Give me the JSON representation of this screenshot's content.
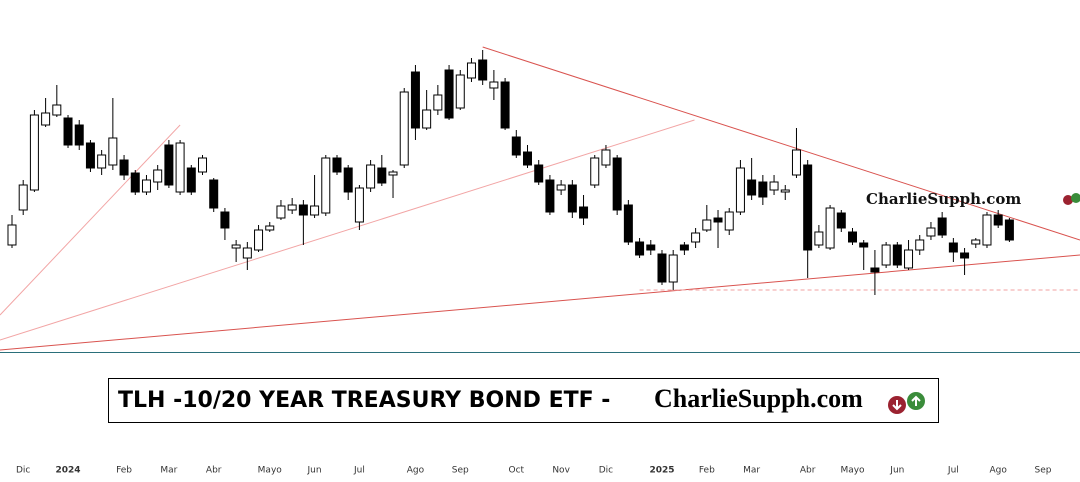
{
  "chart_data": {
    "type": "candlestick",
    "watermark": "CharlieSupph.com",
    "title": "TLH -10/20 YEAR TREASURY BOND ETF - ",
    "title_brand": "CharlieSupph.com",
    "xlim": [
      -1.07,
      95.3
    ],
    "ylim": [
      0,
      352
    ],
    "up_color": "#ffffff",
    "down_color": "#000000",
    "xticks": [
      {
        "value": 1,
        "label": "Dic"
      },
      {
        "value": 5,
        "label": "2024",
        "bold": true
      },
      {
        "value": 10,
        "label": "Feb"
      },
      {
        "value": 14,
        "label": "Mar"
      },
      {
        "value": 18,
        "label": "Abr"
      },
      {
        "value": 23,
        "label": "Mayo"
      },
      {
        "value": 27,
        "label": "Jun"
      },
      {
        "value": 31,
        "label": "Jul"
      },
      {
        "value": 36,
        "label": "Ago"
      },
      {
        "value": 40,
        "label": "Sep"
      },
      {
        "value": 45,
        "label": "Oct"
      },
      {
        "value": 49,
        "label": "Nov"
      },
      {
        "value": 53,
        "label": "Dic"
      },
      {
        "value": 58,
        "label": "2025",
        "bold": true
      },
      {
        "value": 62,
        "label": "Feb"
      },
      {
        "value": 66,
        "label": "Mar"
      },
      {
        "value": 71,
        "label": "Abr"
      },
      {
        "value": 75,
        "label": "Mayo"
      },
      {
        "value": 79,
        "label": "Jun"
      },
      {
        "value": 84,
        "label": "Jul"
      },
      {
        "value": 88,
        "label": "Ago"
      },
      {
        "value": 92,
        "label": "Sep"
      }
    ],
    "open": [
      107,
      142,
      162,
      227,
      237,
      234,
      227,
      209,
      184,
      187,
      192,
      179,
      160,
      170,
      207,
      160,
      184,
      180,
      172,
      140,
      104,
      94,
      102,
      122,
      134,
      142,
      147,
      137,
      139,
      194,
      184,
      130,
      164,
      184,
      177,
      187,
      280,
      224,
      242,
      282,
      244,
      274,
      292,
      264,
      270,
      215,
      200,
      187,
      172,
      162,
      167,
      145,
      167,
      187,
      194,
      147,
      110,
      107,
      98,
      70,
      107,
      110,
      122,
      134,
      122,
      140,
      172,
      170,
      162,
      160,
      177,
      187,
      107,
      104,
      139,
      120,
      109,
      84,
      87,
      107,
      84,
      102,
      116,
      134,
      109,
      99,
      108,
      107,
      137,
      132
    ],
    "high": [
      137,
      172,
      242,
      254,
      267,
      237,
      232,
      212,
      202,
      254,
      197,
      182,
      177,
      187,
      212,
      212,
      187,
      197,
      174,
      144,
      112,
      110,
      127,
      130,
      152,
      154,
      152,
      177,
      197,
      197,
      187,
      167,
      192,
      197,
      182,
      264,
      287,
      262,
      267,
      287,
      282,
      294,
      302,
      282,
      274,
      222,
      207,
      192,
      177,
      172,
      172,
      157,
      197,
      207,
      197,
      152,
      114,
      112,
      102,
      102,
      110,
      124,
      147,
      142,
      144,
      192,
      194,
      177,
      177,
      167,
      224,
      192,
      127,
      147,
      142,
      124,
      112,
      102,
      110,
      110,
      112,
      117,
      130,
      140,
      114,
      104,
      114,
      140,
      142,
      134
    ],
    "low": [
      104,
      137,
      160,
      225,
      235,
      204,
      202,
      180,
      177,
      182,
      172,
      157,
      157,
      162,
      164,
      157,
      157,
      177,
      140,
      112,
      90,
      82,
      100,
      120,
      132,
      138,
      107,
      134,
      136,
      177,
      152,
      122,
      160,
      166,
      154,
      184,
      212,
      222,
      237,
      232,
      242,
      270,
      267,
      252,
      222,
      194,
      184,
      167,
      137,
      157,
      134,
      127,
      164,
      184,
      137,
      107,
      94,
      97,
      67,
      62,
      97,
      104,
      120,
      104,
      117,
      137,
      152,
      147,
      157,
      152,
      174,
      74,
      104,
      102,
      120,
      107,
      82,
      57,
      84,
      84,
      82,
      97,
      112,
      114,
      90,
      77,
      104,
      104,
      124,
      110
    ],
    "close": [
      127,
      167,
      237,
      239,
      247,
      207,
      207,
      184,
      197,
      214,
      177,
      160,
      172,
      182,
      167,
      209,
      160,
      194,
      144,
      124,
      107,
      104,
      122,
      126,
      146,
      147,
      137,
      146,
      194,
      180,
      160,
      164,
      187,
      169,
      180,
      260,
      224,
      242,
      257,
      234,
      277,
      289,
      272,
      270,
      224,
      197,
      187,
      170,
      140,
      167,
      140,
      134,
      194,
      202,
      142,
      110,
      97,
      102,
      70,
      97,
      102,
      119,
      132,
      130,
      140,
      184,
      157,
      155,
      170,
      162,
      202,
      102,
      120,
      144,
      124,
      110,
      105,
      80,
      107,
      87,
      102,
      112,
      124,
      117,
      100,
      94,
      112,
      137,
      127,
      112
    ],
    "trendlines": [
      {
        "from": [
          -1.07,
          37
        ],
        "to": [
          15,
          227
        ],
        "color": "#f2a5a5"
      },
      {
        "from": [
          -1.07,
          12
        ],
        "to": [
          60.9,
          232
        ],
        "color": "#f2a5a5"
      },
      {
        "from": [
          -1.07,
          2
        ],
        "to": [
          95.3,
          97
        ],
        "color": "#d9534f"
      },
      {
        "from": [
          42,
          305
        ],
        "to": [
          95.3,
          112
        ],
        "color": "#d9534f"
      },
      {
        "from": [
          56,
          62
        ],
        "to": [
          95.3,
          62
        ],
        "color": "#f0a0a0",
        "dashed": true
      }
    ]
  }
}
